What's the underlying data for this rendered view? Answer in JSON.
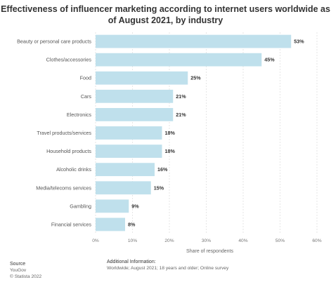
{
  "chart_data": {
    "type": "bar",
    "orientation": "horizontal",
    "title": "Effectiveness of influencer marketing according to internet users worldwide as of August 2021, by industry",
    "xlabel": "Share of respondents",
    "ylabel": "",
    "xlim": [
      0,
      60
    ],
    "x_ticks": [
      "0%",
      "10%",
      "20%",
      "30%",
      "40%",
      "50%",
      "60%"
    ],
    "grid": true,
    "categories": [
      "Beauty or personal care products",
      "Clothes/accessories",
      "Food",
      "Cars",
      "Electronics",
      "Travel products/services",
      "Household products",
      "Alcoholic drinks",
      "Media/telecoms services",
      "Gambling",
      "Financial services"
    ],
    "values": [
      53,
      45,
      25,
      21,
      21,
      18,
      18,
      16,
      15,
      9,
      8
    ],
    "value_labels": [
      "53%",
      "45%",
      "25%",
      "21%",
      "21%",
      "18%",
      "18%",
      "16%",
      "15%",
      "9%",
      "8%"
    ],
    "bar_color": "#bfe0ec"
  },
  "footer": {
    "source_heading": "Source",
    "source_name": "YouGov",
    "copyright": "© Statista 2022",
    "info_heading": "Additional Information:",
    "info_text": "Worldwide; August 2021; 18 years and older; Online survey"
  }
}
